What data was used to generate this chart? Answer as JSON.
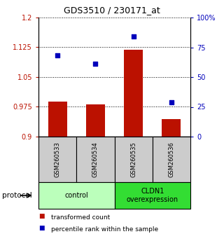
{
  "title": "GDS3510 / 230171_at",
  "samples": [
    "GSM260533",
    "GSM260534",
    "GSM260535",
    "GSM260536"
  ],
  "bar_values": [
    0.988,
    0.982,
    1.118,
    0.945
  ],
  "bar_base": 0.9,
  "scatter_values_pct": [
    68,
    61,
    84,
    29
  ],
  "ylim_left": [
    0.9,
    1.2
  ],
  "ylim_right": [
    0,
    100
  ],
  "yticks_left": [
    0.9,
    0.975,
    1.05,
    1.125,
    1.2
  ],
  "ytick_labels_left": [
    "0.9",
    "0.975",
    "1.05",
    "1.125",
    "1.2"
  ],
  "yticks_right": [
    0,
    25,
    50,
    75,
    100
  ],
  "ytick_labels_right": [
    "0",
    "25",
    "50",
    "75",
    "100%"
  ],
  "bar_color": "#bb1100",
  "scatter_color": "#0000bb",
  "bar_width": 0.5,
  "groups": [
    {
      "label": "control",
      "samples": [
        0,
        1
      ],
      "color": "#bbffbb"
    },
    {
      "label": "CLDN1\noverexpression",
      "samples": [
        2,
        3
      ],
      "color": "#33dd33"
    }
  ],
  "protocol_label": "protocol",
  "legend_items": [
    {
      "color": "#bb1100",
      "label": "transformed count"
    },
    {
      "color": "#0000bb",
      "label": "percentile rank within the sample"
    }
  ],
  "sample_box_color": "#cccccc",
  "fig_width": 3.2,
  "fig_height": 3.54,
  "dpi": 100
}
